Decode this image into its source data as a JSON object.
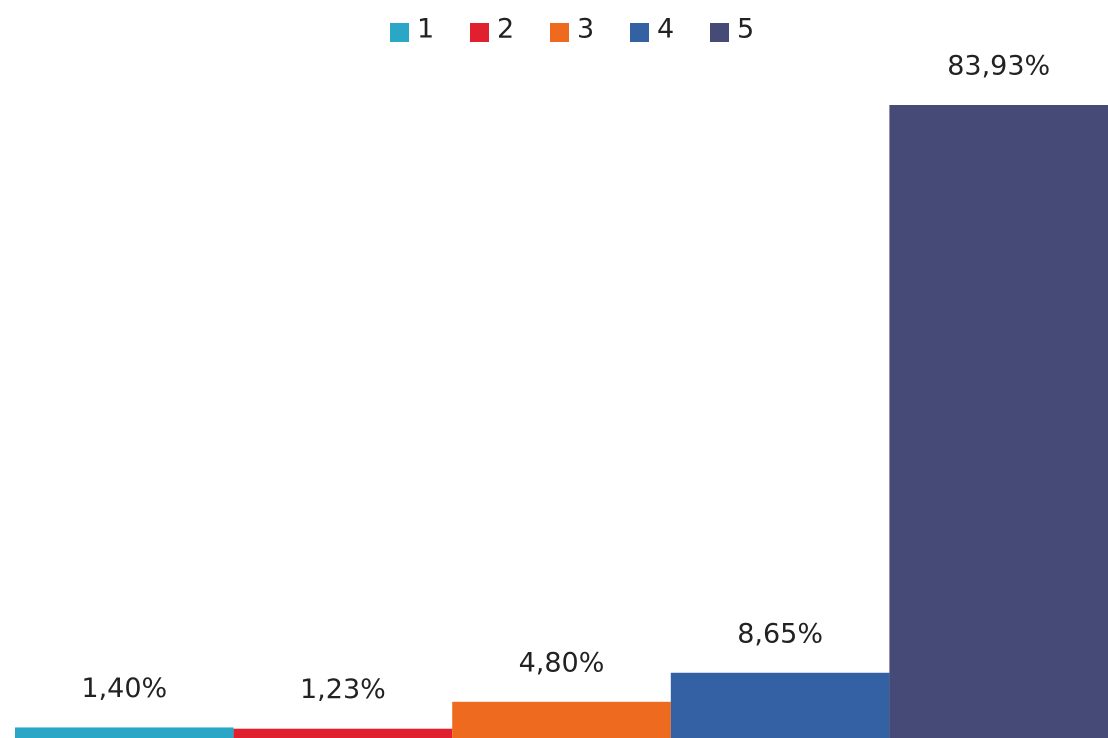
{
  "chart_data": {
    "type": "bar",
    "categories": [
      null
    ],
    "series": [
      {
        "name": "1",
        "color": "#2aa7c7",
        "values": [
          1.4
        ],
        "value_labels": [
          "1,40%"
        ]
      },
      {
        "name": "2",
        "color": "#e0202e",
        "values": [
          1.23
        ],
        "value_labels": [
          "1,23%"
        ]
      },
      {
        "name": "3",
        "color": "#ee6a1f",
        "values": [
          4.8
        ],
        "value_labels": [
          "4,80%"
        ]
      },
      {
        "name": "4",
        "color": "#3361a3",
        "values": [
          8.65
        ],
        "value_labels": [
          "8,65%"
        ]
      },
      {
        "name": "5",
        "color": "#454a76",
        "values": [
          83.93
        ],
        "value_labels": [
          "83,93%"
        ]
      }
    ],
    "legend": "top"
  }
}
